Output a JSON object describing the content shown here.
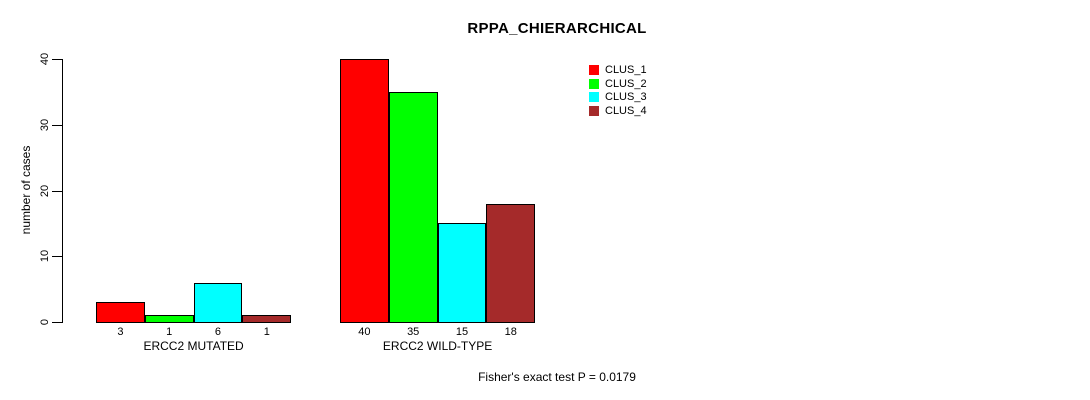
{
  "title": "RPPA_CHIERARCHICAL",
  "footer": "Fisher's exact test P = 0.0179",
  "y_axis": {
    "label": "number of cases",
    "ticks": [
      0,
      10,
      20,
      30,
      40
    ]
  },
  "chart_data": {
    "type": "bar",
    "title": "RPPA_CHIERARCHICAL",
    "xlabel": "",
    "ylabel": "number of cases",
    "ylim": [
      0,
      40
    ],
    "yticks": [
      0,
      10,
      20,
      30,
      40
    ],
    "grid": false,
    "legend_position": "topright",
    "categories": [
      "ERCC2 MUTATED",
      "ERCC2 WILD-TYPE"
    ],
    "series": [
      {
        "name": "CLUS_1",
        "color": "#FF0000",
        "values": [
          3,
          40
        ]
      },
      {
        "name": "CLUS_2",
        "color": "#00FF00",
        "values": [
          1,
          35
        ]
      },
      {
        "name": "CLUS_3",
        "color": "#00FFFF",
        "values": [
          6,
          15
        ]
      },
      {
        "name": "CLUS_4",
        "color": "#A52A2A",
        "values": [
          1,
          18
        ]
      }
    ],
    "bar_labels": [
      [
        "3",
        "1",
        "6",
        "1"
      ],
      [
        "40",
        "35",
        "15",
        "18"
      ]
    ],
    "annotation": "Fisher's exact test P = 0.0179"
  }
}
